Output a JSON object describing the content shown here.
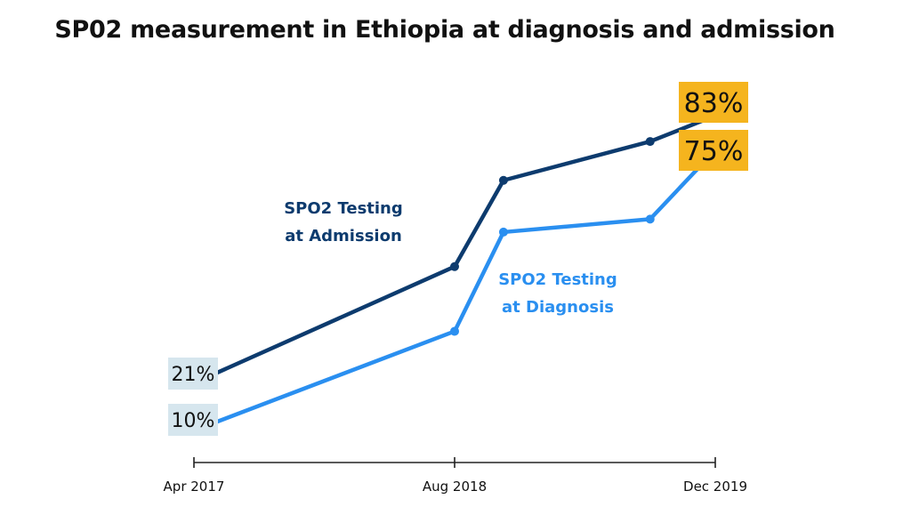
{
  "title": "SP02 measurement in Ethiopia at diagnosis and admission",
  "chart_data": {
    "type": "line",
    "title": "SP02 measurement in Ethiopia at diagnosis and admission",
    "x_tick_labels": [
      "Apr 2017",
      "Aug 2018",
      "Dec 2019"
    ],
    "x": [
      "2017-04",
      "2018-08",
      "2018-11",
      "2019-08",
      "2019-12"
    ],
    "ylim": [
      0,
      100
    ],
    "grid": false,
    "legend": "none",
    "series": [
      {
        "name": "SPO2 Testing at Admission",
        "label_lines": [
          "SPO2 Testing",
          "at Admission"
        ],
        "color": "#0d3b6e",
        "points": [
          {
            "x": "2017-04",
            "y": 21
          },
          {
            "x": "2018-08",
            "y": 48
          },
          {
            "x": "2018-11",
            "y": 68
          },
          {
            "x": "2019-08",
            "y": 77
          },
          {
            "x": "2019-12",
            "y": 83
          }
        ],
        "start_label": "21%",
        "end_label": "83%"
      },
      {
        "name": "SPO2 Testing at Diagnosis",
        "label_lines": [
          "SPO2 Testing",
          "at Diagnosis"
        ],
        "color": "#2a8ff0",
        "points": [
          {
            "x": "2017-04",
            "y": 10
          },
          {
            "x": "2018-08",
            "y": 33
          },
          {
            "x": "2018-11",
            "y": 56
          },
          {
            "x": "2019-08",
            "y": 59
          },
          {
            "x": "2019-12",
            "y": 75
          }
        ],
        "start_label": "10%",
        "end_label": "75%"
      }
    ],
    "start_label_bg": "#d6e6ee",
    "end_label_bg": "#f5b41e"
  }
}
